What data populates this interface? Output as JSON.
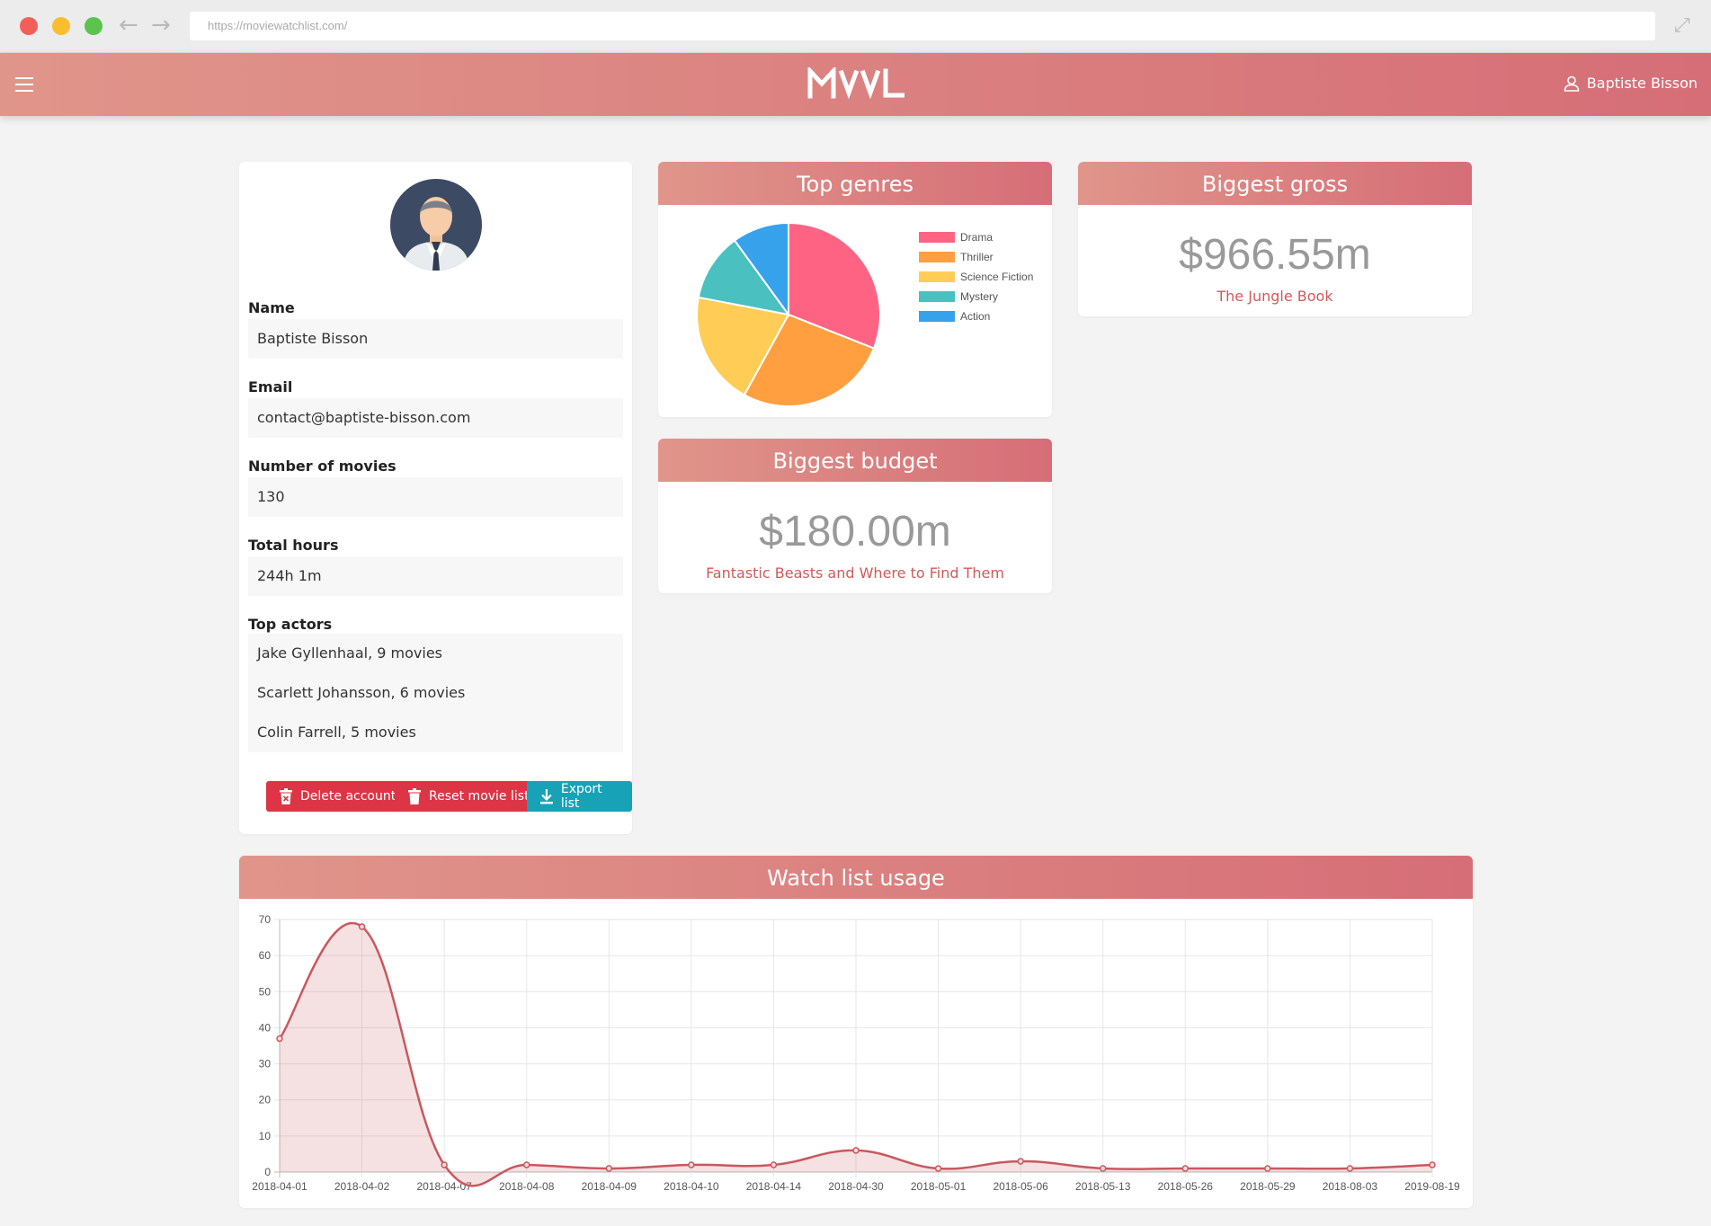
{
  "browser": {
    "url": "https://moviewatchlist.com/"
  },
  "header": {
    "logo_text": "MVVL",
    "user_name": "Baptiste Bisson"
  },
  "profile": {
    "name_label": "Name",
    "name_value": "Baptiste Bisson",
    "email_label": "Email",
    "email_value": "contact@baptiste-bisson.com",
    "movies_label": "Number of movies",
    "movies_value": "130",
    "hours_label": "Total hours",
    "hours_value": "244h 1m",
    "actors_label": "Top actors",
    "actors": [
      "Jake Gyllenhaal, 9 movies",
      "Scarlett Johansson, 6 movies",
      "Colin Farrell, 5 movies"
    ],
    "buttons": {
      "delete": "Delete account",
      "reset": "Reset movie list",
      "export": "Export list"
    }
  },
  "top_genres": {
    "title": "Top genres"
  },
  "biggest_gross": {
    "title": "Biggest gross",
    "amount": "$966.55m",
    "movie": "The Jungle Book"
  },
  "biggest_budget": {
    "title": "Biggest budget",
    "amount": "$180.00m",
    "movie": "Fantastic Beasts and Where to Find Them"
  },
  "usage": {
    "title": "Watch list usage"
  },
  "colors": {
    "accent_start": "#e0958a",
    "accent_end": "#d66e77",
    "danger": "#dc3545",
    "info": "#17a2b8",
    "line": "#c9585f"
  },
  "chart_data": [
    {
      "type": "pie",
      "title": "Top genres",
      "legend_position": "right",
      "labels": [
        "Drama",
        "Thriller",
        "Science Fiction",
        "Mystery",
        "Action"
      ],
      "values": [
        31,
        27,
        20,
        12,
        10
      ],
      "colors": [
        "#ff6384",
        "#ff9f40",
        "#ffcd56",
        "#4bc0c0",
        "#36a2eb"
      ]
    },
    {
      "type": "area",
      "title": "Watch list usage",
      "grid": true,
      "ylim": [
        0,
        70
      ],
      "yticks": [
        0,
        10,
        20,
        30,
        40,
        50,
        60,
        70
      ],
      "categories": [
        "2018-04-01",
        "2018-04-02",
        "2018-04-07",
        "2018-04-08",
        "2018-04-09",
        "2018-04-10",
        "2018-04-14",
        "2018-04-30",
        "2018-05-01",
        "2018-05-06",
        "2018-05-13",
        "2018-05-26",
        "2018-05-29",
        "2018-08-03",
        "2019-08-19"
      ],
      "values": [
        37,
        68,
        2,
        2,
        1,
        2,
        2,
        6,
        1,
        3,
        1,
        1,
        1,
        1,
        2
      ]
    }
  ]
}
